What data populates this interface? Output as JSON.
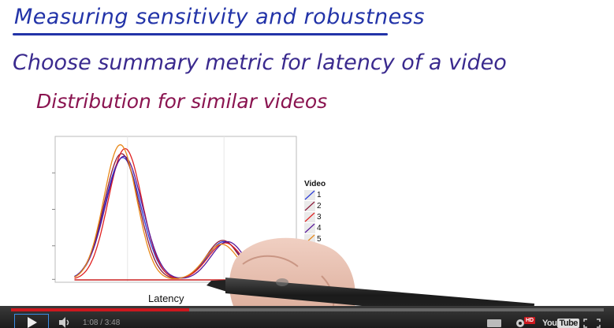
{
  "lecture": {
    "title": "Measuring sensitivity and robustness",
    "line1": "Choose summary metric for latency of a video",
    "line2": "Distribution for similar videos"
  },
  "chart_data": {
    "type": "line",
    "xlabel": "Latency",
    "ylabel": "",
    "legend_title": "Video",
    "legend_position": "right",
    "grid": true,
    "series": [
      {
        "name": "1",
        "color": "#2a3bd6",
        "peak1": {
          "x": 0.28,
          "h": 0.96,
          "w": 0.075
        },
        "peak2": {
          "x": 0.7,
          "h": 0.3,
          "w": 0.07
        }
      },
      {
        "name": "2",
        "color": "#8b1a3a",
        "peak1": {
          "x": 0.275,
          "h": 0.99,
          "w": 0.072
        },
        "peak2": {
          "x": 0.695,
          "h": 0.31,
          "w": 0.068
        }
      },
      {
        "name": "3",
        "color": "#e02020",
        "peak1": {
          "x": 0.29,
          "h": 1.03,
          "w": 0.07
        },
        "peak2": {
          "x": 0.705,
          "h": 0.29,
          "w": 0.072
        }
      },
      {
        "name": "4",
        "color": "#5a1a9a",
        "peak1": {
          "x": 0.285,
          "h": 0.97,
          "w": 0.076
        },
        "peak2": {
          "x": 0.715,
          "h": 0.3,
          "w": 0.07
        }
      },
      {
        "name": "5",
        "color": "#e8891a",
        "peak1": {
          "x": 0.27,
          "h": 1.06,
          "w": 0.068
        },
        "peak2": {
          "x": 0.69,
          "h": 0.28,
          "w": 0.069
        }
      }
    ]
  },
  "player": {
    "current_time": "1:08",
    "duration": "3:48",
    "time_display": "1:08 / 3:48",
    "progress": 0.3,
    "hd_label": "HD",
    "logo": {
      "you": "You",
      "tube": "Tube"
    },
    "accent_color": "#cc181e"
  },
  "icons": [
    "play-icon",
    "volume-icon",
    "captions-icon",
    "settings-icon",
    "fullscreen-icon"
  ]
}
